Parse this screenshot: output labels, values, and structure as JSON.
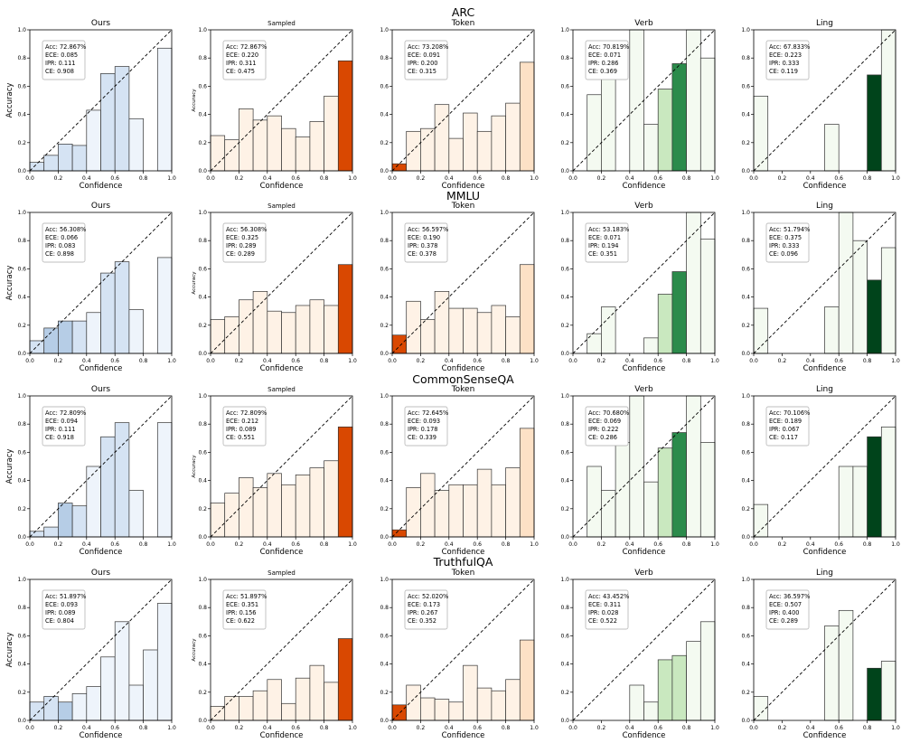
{
  "figure": {
    "row_titles": [
      "ARC",
      "MMLU",
      "CommonSenseQA",
      "TruthfulQA"
    ],
    "column_titles": [
      "Ours",
      "Sampled",
      "Token",
      "Verb",
      "Ling"
    ],
    "xlabel": "Confidence",
    "ylabel_main": "Accuracy",
    "ylabel_small": "Accuracy",
    "tick_labels": [
      "0.0",
      "0.2",
      "0.4",
      "0.6",
      "0.8",
      "1.0"
    ]
  },
  "chart_data": {
    "type": "bar",
    "description_bins": [
      0.05,
      0.15,
      0.25,
      0.35,
      0.45,
      0.55,
      0.65,
      0.75,
      0.85,
      0.95
    ],
    "xlim": [
      0,
      1
    ],
    "ylim": [
      0,
      1
    ],
    "diagonal": "dashed y=x reference line",
    "colors": {
      "Ours": {
        "light": "#eef4fb",
        "mid": "#d5e3f3",
        "dark": "#b6cde6"
      },
      "Sampled": {
        "light": "#fef2e6",
        "mid": "#fde1c6",
        "dark": "#d94801"
      },
      "Token": {
        "light": "#fef2e6",
        "mid": "#fde1c6",
        "dark": "#d94801"
      },
      "Verb": {
        "light": "#f4faf1",
        "mid": "#c9e8bf",
        "dark": "#2b8b4b"
      },
      "Ling": {
        "light": "#f4faf1",
        "mid": "#c9e8bf",
        "dark": "#00441b"
      }
    },
    "panels": [
      {
        "row": 0,
        "col": 0,
        "title": "Ours",
        "stats": [
          "Acc: 72.867%",
          "ECE: 0.085",
          "IPR: 0.111",
          "CE: 0.908"
        ],
        "values": [
          0.06,
          0.11,
          0.19,
          0.18,
          0.43,
          0.69,
          0.74,
          0.37,
          null,
          0.87
        ],
        "shade": [
          "mid",
          "mid",
          "mid",
          "mid",
          "light",
          "mid",
          "mid",
          "light",
          null,
          "light"
        ]
      },
      {
        "row": 0,
        "col": 1,
        "title": "Sampled",
        "stats": [
          "Acc: 72.867%",
          "ECE: 0.220",
          "IPR: 0.311",
          "CE: 0.475"
        ],
        "values": [
          0.25,
          0.22,
          0.44,
          0.36,
          0.39,
          0.3,
          0.24,
          0.35,
          0.53,
          0.78
        ],
        "shade": [
          "light",
          "light",
          "light",
          "light",
          "light",
          "light",
          "light",
          "light",
          "light",
          "dark"
        ]
      },
      {
        "row": 0,
        "col": 2,
        "title": "Token",
        "stats": [
          "Acc: 73.208%",
          "ECE: 0.091",
          "IPR: 0.200",
          "CE: 0.315"
        ],
        "values": [
          0.05,
          0.28,
          0.3,
          0.47,
          0.23,
          0.41,
          0.28,
          0.39,
          0.48,
          0.77
        ],
        "shade": [
          "dark",
          "light",
          "light",
          "light",
          "light",
          "light",
          "light",
          "light",
          "light",
          "mid"
        ]
      },
      {
        "row": 0,
        "col": 3,
        "title": "Verb",
        "stats": [
          "Acc: 70.819%",
          "ECE: 0.071",
          "IPR: 0.286",
          "CE: 0.369"
        ],
        "values": [
          null,
          0.54,
          0.67,
          null,
          1.0,
          0.33,
          0.58,
          0.76,
          1.0,
          0.8
        ],
        "shade": [
          null,
          "light",
          "light",
          null,
          "light",
          "light",
          "mid",
          "dark",
          "light",
          "light"
        ]
      },
      {
        "row": 0,
        "col": 4,
        "title": "Ling",
        "stats": [
          "Acc: 67.833%",
          "ECE: 0.223",
          "IPR: 0.333",
          "CE: 0.119"
        ],
        "values": [
          0.53,
          null,
          null,
          null,
          null,
          0.33,
          null,
          null,
          0.68,
          1.0
        ],
        "shade": [
          "light",
          null,
          null,
          null,
          null,
          "light",
          null,
          null,
          "dark",
          "light"
        ]
      },
      {
        "row": 1,
        "col": 0,
        "title": "Ours",
        "stats": [
          "Acc: 56.308%",
          "ECE: 0.066",
          "IPR: 0.083",
          "CE: 0.898"
        ],
        "values": [
          0.09,
          0.18,
          0.23,
          0.23,
          0.29,
          0.57,
          0.65,
          0.31,
          null,
          0.68
        ],
        "shade": [
          "mid",
          "dark",
          "dark",
          "mid",
          "light",
          "mid",
          "mid",
          "light",
          null,
          "light"
        ]
      },
      {
        "row": 1,
        "col": 1,
        "title": "Sampled",
        "stats": [
          "Acc: 56.308%",
          "ECE: 0.325",
          "IPR: 0.289",
          "CE: 0.289"
        ],
        "values": [
          0.24,
          0.26,
          0.38,
          0.44,
          0.3,
          0.29,
          0.34,
          0.38,
          0.34,
          0.63
        ],
        "shade": [
          "light",
          "light",
          "light",
          "light",
          "light",
          "light",
          "light",
          "light",
          "light",
          "dark"
        ]
      },
      {
        "row": 1,
        "col": 2,
        "title": "Token",
        "stats": [
          "Acc: 56.597%",
          "ECE: 0.190",
          "IPR: 0.378",
          "CE: 0.378"
        ],
        "values": [
          0.13,
          0.37,
          0.24,
          0.44,
          0.32,
          0.32,
          0.29,
          0.34,
          0.26,
          0.63
        ],
        "shade": [
          "dark",
          "light",
          "light",
          "light",
          "light",
          "light",
          "light",
          "light",
          "light",
          "mid"
        ]
      },
      {
        "row": 1,
        "col": 3,
        "title": "Verb",
        "stats": [
          "Acc: 53.183%",
          "ECE: 0.071",
          "IPR: 0.194",
          "CE: 0.351"
        ],
        "values": [
          null,
          0.14,
          0.33,
          null,
          null,
          0.11,
          0.42,
          0.58,
          1.0,
          0.81
        ],
        "shade": [
          null,
          "light",
          "light",
          null,
          null,
          "light",
          "mid",
          "dark",
          "light",
          "light"
        ]
      },
      {
        "row": 1,
        "col": 4,
        "title": "Ling",
        "stats": [
          "Acc: 51.794%",
          "ECE: 0.375",
          "IPR: 0.333",
          "CE: 0.096"
        ],
        "values": [
          0.32,
          null,
          null,
          null,
          null,
          0.33,
          1.0,
          0.8,
          0.52,
          0.75
        ],
        "shade": [
          "light",
          null,
          null,
          null,
          null,
          "light",
          "light",
          "light",
          "dark",
          "light"
        ]
      },
      {
        "row": 2,
        "col": 0,
        "title": "Ours",
        "stats": [
          "Acc: 72.809%",
          "ECE: 0.094",
          "IPR: 0.111",
          "CE: 0.918"
        ],
        "values": [
          0.04,
          0.07,
          0.24,
          0.22,
          0.5,
          0.71,
          0.81,
          0.33,
          null,
          0.81
        ],
        "shade": [
          "mid",
          "mid",
          "dark",
          "mid",
          "light",
          "mid",
          "mid",
          "light",
          null,
          "light"
        ]
      },
      {
        "row": 2,
        "col": 1,
        "title": "Sampled",
        "stats": [
          "Acc: 72.809%",
          "ECE: 0.212",
          "IPR: 0.089",
          "CE: 0.551"
        ],
        "values": [
          0.24,
          0.31,
          0.42,
          0.35,
          0.45,
          0.37,
          0.44,
          0.49,
          0.54,
          0.78
        ],
        "shade": [
          "light",
          "light",
          "light",
          "light",
          "light",
          "light",
          "light",
          "light",
          "light",
          "dark"
        ]
      },
      {
        "row": 2,
        "col": 2,
        "title": "Token",
        "stats": [
          "Acc: 72.645%",
          "ECE: 0.093",
          "IPR: 0.178",
          "CE: 0.339"
        ],
        "values": [
          0.05,
          0.35,
          0.45,
          0.33,
          0.37,
          0.37,
          0.48,
          0.37,
          0.49,
          0.77
        ],
        "shade": [
          "dark",
          "light",
          "light",
          "light",
          "light",
          "light",
          "light",
          "light",
          "light",
          "mid"
        ]
      },
      {
        "row": 2,
        "col": 3,
        "title": "Verb",
        "stats": [
          "Acc: 70.680%",
          "ECE: 0.069",
          "IPR: 0.222",
          "CE: 0.286"
        ],
        "values": [
          null,
          0.5,
          0.33,
          0.67,
          1.0,
          0.39,
          0.63,
          0.74,
          1.0,
          0.67
        ],
        "shade": [
          null,
          "light",
          "light",
          "light",
          "light",
          "light",
          "mid",
          "dark",
          "light",
          "light"
        ]
      },
      {
        "row": 2,
        "col": 4,
        "title": "Ling",
        "stats": [
          "Acc: 70.106%",
          "ECE: 0.189",
          "IPR: 0.067",
          "CE: 0.117"
        ],
        "values": [
          0.23,
          null,
          null,
          null,
          null,
          null,
          0.5,
          0.5,
          0.71,
          0.78
        ],
        "shade": [
          "light",
          null,
          null,
          null,
          null,
          null,
          "light",
          "light",
          "dark",
          "light"
        ]
      },
      {
        "row": 3,
        "col": 0,
        "title": "Ours",
        "stats": [
          "Acc: 51.897%",
          "ECE: 0.093",
          "IPR: 0.089",
          "CE: 0.804"
        ],
        "values": [
          0.13,
          0.17,
          0.13,
          0.19,
          0.24,
          0.45,
          0.7,
          0.25,
          0.5,
          0.83
        ],
        "shade": [
          "mid",
          "mid",
          "dark",
          "light",
          "light",
          "light",
          "light",
          "light",
          "light",
          "light"
        ]
      },
      {
        "row": 3,
        "col": 1,
        "title": "Sampled",
        "stats": [
          "Acc: 51.897%",
          "ECE: 0.351",
          "IPR: 0.156",
          "CE: 0.622"
        ],
        "values": [
          0.1,
          0.17,
          0.17,
          0.21,
          0.29,
          0.12,
          0.3,
          0.39,
          0.27,
          0.58
        ],
        "shade": [
          "light",
          "light",
          "light",
          "light",
          "light",
          "light",
          "light",
          "light",
          "light",
          "dark"
        ]
      },
      {
        "row": 3,
        "col": 2,
        "title": "Token",
        "stats": [
          "Acc: 52.020%",
          "ECE: 0.173",
          "IPR: 0.267",
          "CE: 0.352"
        ],
        "values": [
          0.11,
          0.25,
          0.16,
          0.15,
          0.13,
          0.39,
          0.23,
          0.21,
          0.29,
          0.57
        ],
        "shade": [
          "dark",
          "light",
          "light",
          "light",
          "light",
          "light",
          "light",
          "light",
          "light",
          "mid"
        ]
      },
      {
        "row": 3,
        "col": 3,
        "title": "Verb",
        "stats": [
          "Acc: 43.452%",
          "ECE: 0.311",
          "IPR: 0.028",
          "CE: 0.522"
        ],
        "values": [
          null,
          null,
          null,
          null,
          0.25,
          0.13,
          0.43,
          0.46,
          0.56,
          0.7
        ],
        "shade": [
          null,
          null,
          null,
          null,
          "light",
          "light",
          "mid",
          "mid",
          "light",
          "light"
        ]
      },
      {
        "row": 3,
        "col": 4,
        "title": "Ling",
        "stats": [
          "Acc: 36.597%",
          "ECE: 0.507",
          "IPR: 0.400",
          "CE: 0.289"
        ],
        "values": [
          0.17,
          null,
          null,
          null,
          null,
          0.67,
          0.78,
          null,
          0.37,
          0.42
        ],
        "shade": [
          "light",
          null,
          null,
          null,
          null,
          "light",
          "light",
          null,
          "dark",
          "light"
        ]
      }
    ]
  }
}
